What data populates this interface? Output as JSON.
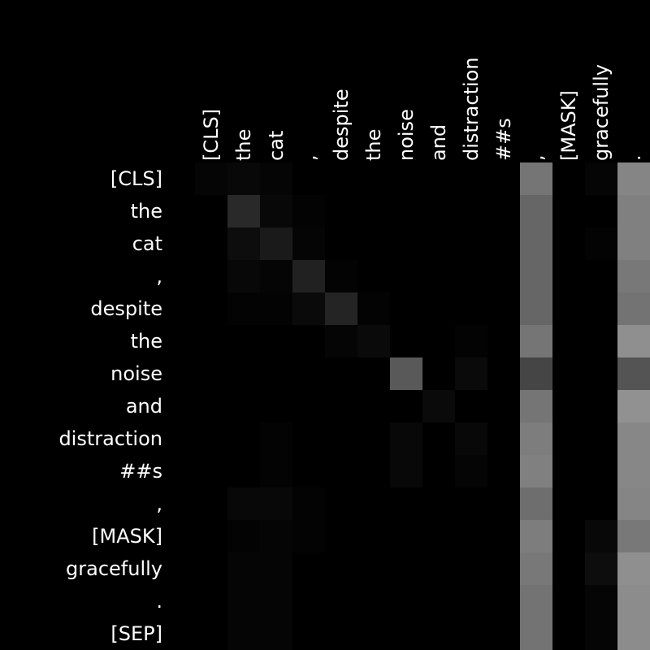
{
  "chart_data": {
    "type": "heatmap",
    "tokens": [
      "[CLS]",
      "the",
      "cat",
      ",",
      "despite",
      "the",
      "noise",
      "and",
      "distraction",
      "##s",
      ",",
      "[MASK]",
      "gracefully",
      ".",
      "[SEP]"
    ],
    "x_tick_labels": [
      "[CLS]",
      "the",
      "cat",
      ",",
      "despite",
      "the",
      "noise",
      "and",
      "distraction",
      "##s",
      ",",
      "[MASK]",
      "gracefully",
      ".",
      "[SEP]"
    ],
    "y_tick_labels": [
      "[CLS]",
      "the",
      "cat",
      ",",
      "despite",
      "the",
      "noise",
      "and",
      "distraction",
      "##s",
      ",",
      "[MASK]",
      "gracefully",
      ".",
      "[SEP]"
    ],
    "x_axis_position": "top",
    "x_tick_rotation": "vertical",
    "colormap": "grayscale (black = 0, white = 1)",
    "value_range": [
      0,
      1
    ],
    "grid": false,
    "legend": "none",
    "matrix": [
      [
        0.02,
        0.03,
        0.02,
        0.0,
        0.0,
        0.0,
        0.0,
        0.0,
        0.0,
        0.0,
        0.46,
        0.0,
        0.02,
        0.52,
        0.0
      ],
      [
        0.0,
        0.16,
        0.03,
        0.01,
        0.0,
        0.0,
        0.0,
        0.0,
        0.0,
        0.0,
        0.4,
        0.0,
        0.0,
        0.5,
        0.0
      ],
      [
        0.0,
        0.05,
        0.1,
        0.02,
        0.0,
        0.0,
        0.0,
        0.0,
        0.0,
        0.0,
        0.4,
        0.0,
        0.01,
        0.5,
        0.0
      ],
      [
        0.0,
        0.03,
        0.02,
        0.13,
        0.01,
        0.0,
        0.0,
        0.0,
        0.0,
        0.0,
        0.4,
        0.0,
        0.0,
        0.47,
        0.0
      ],
      [
        0.0,
        0.01,
        0.01,
        0.04,
        0.14,
        0.01,
        0.0,
        0.0,
        0.0,
        0.0,
        0.4,
        0.0,
        0.0,
        0.45,
        0.0
      ],
      [
        0.0,
        0.0,
        0.0,
        0.0,
        0.02,
        0.04,
        0.0,
        0.0,
        0.01,
        0.0,
        0.46,
        0.0,
        0.0,
        0.56,
        0.0
      ],
      [
        0.0,
        0.0,
        0.0,
        0.0,
        0.0,
        0.0,
        0.35,
        0.0,
        0.04,
        0.0,
        0.27,
        0.0,
        0.0,
        0.33,
        0.0
      ],
      [
        0.0,
        0.0,
        0.0,
        0.0,
        0.0,
        0.0,
        0.0,
        0.04,
        0.0,
        0.0,
        0.46,
        0.0,
        0.0,
        0.57,
        0.0
      ],
      [
        0.0,
        0.0,
        0.01,
        0.0,
        0.0,
        0.0,
        0.03,
        0.0,
        0.03,
        0.0,
        0.49,
        0.0,
        0.0,
        0.53,
        0.0
      ],
      [
        0.0,
        0.0,
        0.01,
        0.0,
        0.0,
        0.0,
        0.03,
        0.0,
        0.02,
        0.0,
        0.5,
        0.0,
        0.0,
        0.53,
        0.0
      ],
      [
        0.0,
        0.03,
        0.03,
        0.01,
        0.0,
        0.0,
        0.0,
        0.0,
        0.0,
        0.0,
        0.43,
        0.0,
        0.0,
        0.52,
        0.0
      ],
      [
        0.0,
        0.01,
        0.02,
        0.01,
        0.0,
        0.0,
        0.0,
        0.0,
        0.0,
        0.0,
        0.49,
        0.0,
        0.03,
        0.47,
        0.0
      ],
      [
        0.0,
        0.02,
        0.02,
        0.0,
        0.0,
        0.0,
        0.0,
        0.0,
        0.0,
        0.0,
        0.47,
        0.0,
        0.05,
        0.56,
        0.0
      ],
      [
        0.0,
        0.02,
        0.02,
        0.0,
        0.0,
        0.0,
        0.0,
        0.0,
        0.0,
        0.0,
        0.45,
        0.0,
        0.02,
        0.55,
        0.0
      ],
      [
        0.0,
        0.02,
        0.02,
        0.0,
        0.0,
        0.0,
        0.0,
        0.0,
        0.0,
        0.0,
        0.45,
        0.0,
        0.02,
        0.55,
        0.0
      ]
    ]
  }
}
